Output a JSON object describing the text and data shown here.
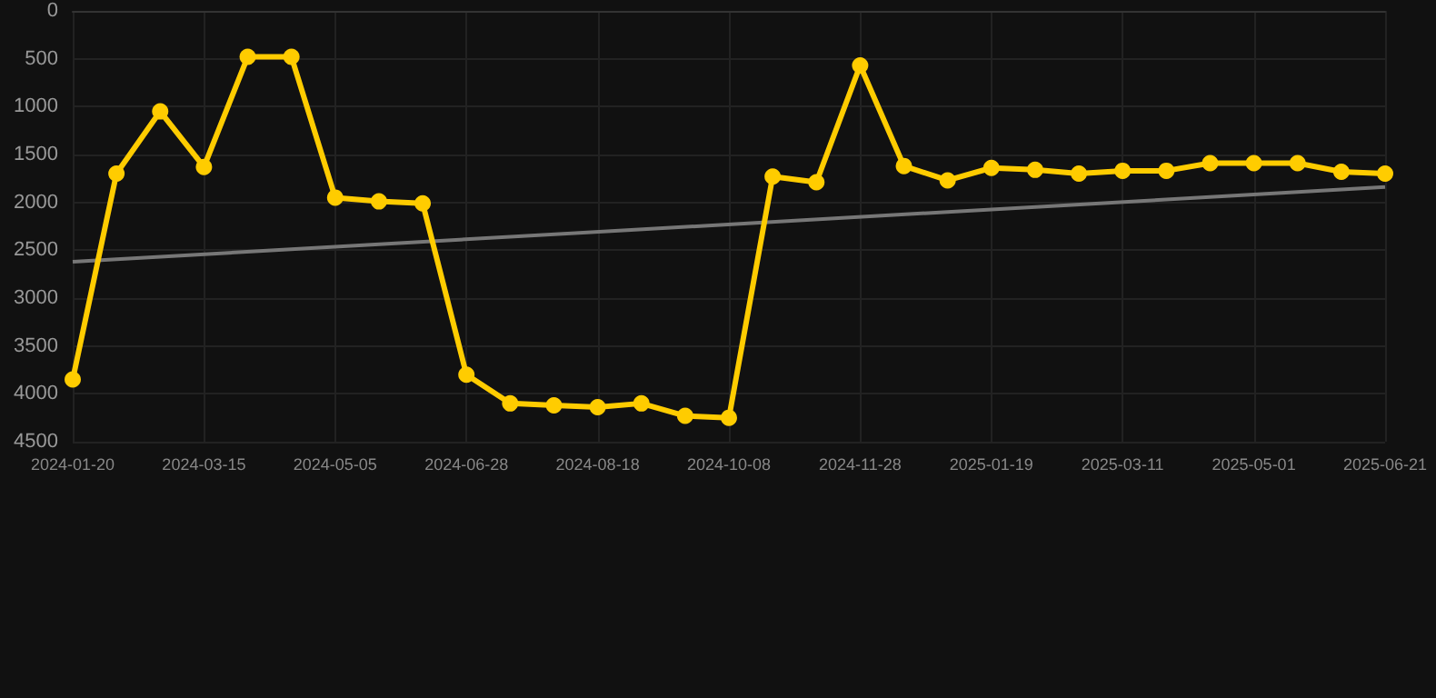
{
  "chart_data": {
    "type": "line",
    "categories": [
      "2024-01-20",
      null,
      null,
      "2024-03-15",
      null,
      null,
      "2024-05-05",
      null,
      null,
      "2024-06-28",
      null,
      null,
      "2024-08-18",
      null,
      null,
      "2024-10-08",
      null,
      null,
      "2024-11-28",
      null,
      null,
      "2025-01-19",
      null,
      null,
      "2025-03-11",
      null,
      null,
      "2025-05-01",
      null,
      null,
      "2025-06-21"
    ],
    "series": [
      {
        "color": "#ffcc00",
        "marker": "circle",
        "values": [
          3850,
          1700,
          1050,
          1630,
          480,
          480,
          1950,
          1990,
          2010,
          3800,
          4100,
          4120,
          4140,
          4100,
          4230,
          4250,
          1730,
          1790,
          570,
          1620,
          1770,
          1640,
          1660,
          1700,
          1670,
          1670,
          1590,
          1590,
          1590,
          1680,
          1700
        ]
      },
      {
        "type": "line",
        "color": "#777777",
        "marker": "none",
        "values": [
          2620,
          null,
          null,
          null,
          null,
          null,
          null,
          null,
          null,
          null,
          null,
          null,
          null,
          null,
          null,
          null,
          null,
          null,
          null,
          null,
          null,
          null,
          null,
          null,
          null,
          null,
          null,
          null,
          null,
          null,
          1840
        ]
      }
    ],
    "ylim": [
      4500,
      0
    ],
    "yticks": [
      0,
      500,
      1000,
      1500,
      2000,
      2500,
      3000,
      3500,
      4000,
      4500
    ],
    "grid": true
  }
}
